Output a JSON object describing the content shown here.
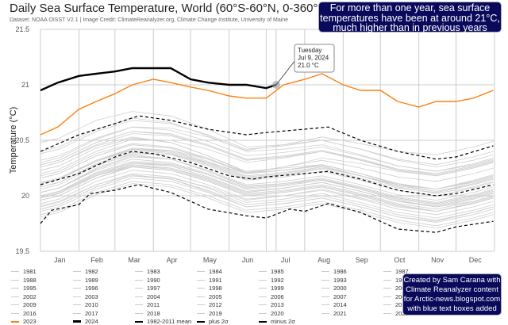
{
  "header": {
    "title": "Daily Sea Surface Temperature, World (60°S-60°N, 0-360°E)",
    "credit": "Dataset: NOAA OISST V2.1 | Image Credit: ClimateReanalyzer.org, Climate Change Institute, University of Maine"
  },
  "annotations": {
    "top_box": [
      "For more than one year, sea surface",
      "temperatures have been at around 21°C,",
      "much higher than in previous years"
    ],
    "bottom_box": [
      "Created by Sam Carana with",
      "Climate Reanalyzer content",
      "for Arctic-news.blogspot.com",
      "with blue text boxes added"
    ],
    "box_color": "#0a0a5c"
  },
  "chart_data": {
    "type": "line",
    "title": "Daily Sea Surface Temperature, World (60°S-60°N, 0-360°E)",
    "ylabel": "Temperature (°C)",
    "xlabel": "",
    "ylim": [
      19.5,
      21.5
    ],
    "yticks": [
      "19.5",
      "20",
      "20.5",
      "21",
      "21.5"
    ],
    "xticks": [
      "Jan",
      "Feb",
      "Mar",
      "Apr",
      "May",
      "Jun",
      "Jul",
      "Aug",
      "Sep",
      "Oct",
      "Nov",
      "Dec"
    ],
    "grid": true,
    "legend_placement": "bottom",
    "colors": {
      "gray": "#cfcfcf",
      "y2023": "#ff7f0e",
      "y2024": "#000000",
      "stats": "#000000"
    },
    "tooltip": {
      "lines": [
        "Tuesday",
        "Jul 9, 2024",
        "21.0 °C"
      ],
      "date": "07-09",
      "value": 21.0
    },
    "gray_years_monthly": [
      {
        "name": "1981",
        "values": [
          19.94,
          20.1,
          20.2,
          20.17,
          20.07,
          19.94,
          19.97,
          20.02,
          19.94,
          19.85,
          19.8,
          19.87
        ]
      },
      {
        "name": "1982",
        "values": [
          19.9,
          20.06,
          20.16,
          20.13,
          20.03,
          19.9,
          19.93,
          19.98,
          19.9,
          19.81,
          19.76,
          19.83
        ]
      },
      {
        "name": "1983",
        "values": [
          20.0,
          20.16,
          20.26,
          20.23,
          20.13,
          20.0,
          20.03,
          20.08,
          20.0,
          19.91,
          19.86,
          19.93
        ]
      },
      {
        "name": "1984",
        "values": [
          19.87,
          20.03,
          20.13,
          20.1,
          20.0,
          19.87,
          19.9,
          19.95,
          19.87,
          19.78,
          19.73,
          19.8
        ]
      },
      {
        "name": "1985",
        "values": [
          19.85,
          20.01,
          20.11,
          20.08,
          19.98,
          19.85,
          19.88,
          19.93,
          19.85,
          19.76,
          19.71,
          19.78
        ]
      },
      {
        "name": "1986",
        "values": [
          19.92,
          20.08,
          20.18,
          20.16,
          20.08,
          19.96,
          20.0,
          20.06,
          19.98,
          19.9,
          19.86,
          19.94
        ]
      },
      {
        "name": "1987",
        "values": [
          20.07,
          20.25,
          20.36,
          20.33,
          20.22,
          20.08,
          20.11,
          20.15,
          20.06,
          19.96,
          19.9,
          19.95
        ]
      },
      {
        "name": "1988",
        "values": [
          20.04,
          20.18,
          20.27,
          20.24,
          20.14,
          20.01,
          20.04,
          20.09,
          20.01,
          19.92,
          19.86,
          19.93
        ]
      },
      {
        "name": "1989",
        "values": [
          19.92,
          20.08,
          20.18,
          20.15,
          20.05,
          19.92,
          19.95,
          20.0,
          19.92,
          19.83,
          19.78,
          19.85
        ]
      },
      {
        "name": "1990",
        "values": [
          20.04,
          20.2,
          20.3,
          20.27,
          20.17,
          20.04,
          20.07,
          20.12,
          20.04,
          19.95,
          19.9,
          19.97
        ]
      },
      {
        "name": "1991",
        "values": [
          20.02,
          20.18,
          20.28,
          20.25,
          20.15,
          20.02,
          20.05,
          20.1,
          20.02,
          19.93,
          19.88,
          19.95
        ]
      },
      {
        "name": "1992",
        "values": [
          19.95,
          20.1,
          20.19,
          20.15,
          20.04,
          19.9,
          19.93,
          19.98,
          19.9,
          19.81,
          19.77,
          19.85
        ]
      },
      {
        "name": "1993",
        "values": [
          19.97,
          20.13,
          20.23,
          20.2,
          20.1,
          19.97,
          20.0,
          20.05,
          19.97,
          19.88,
          19.83,
          19.9
        ]
      },
      {
        "name": "1994",
        "values": [
          20.0,
          20.16,
          20.27,
          20.25,
          20.16,
          20.03,
          20.07,
          20.12,
          20.04,
          19.95,
          19.91,
          19.98
        ]
      },
      {
        "name": "1995",
        "values": [
          20.07,
          20.23,
          20.33,
          20.3,
          20.2,
          20.07,
          20.1,
          20.15,
          20.07,
          19.98,
          19.93,
          20.0
        ]
      },
      {
        "name": "1996",
        "values": [
          20.0,
          20.16,
          20.26,
          20.23,
          20.13,
          20.0,
          20.03,
          20.08,
          20.0,
          19.91,
          19.86,
          19.93
        ]
      },
      {
        "name": "1997",
        "values": [
          20.1,
          20.27,
          20.38,
          20.37,
          20.3,
          20.2,
          20.26,
          20.34,
          20.29,
          20.22,
          20.18,
          20.25
        ]
      },
      {
        "name": "1998",
        "values": [
          20.3,
          20.45,
          20.53,
          20.48,
          20.36,
          20.22,
          20.25,
          20.28,
          20.2,
          20.1,
          20.04,
          20.1
        ]
      },
      {
        "name": "1999",
        "values": [
          20.02,
          20.18,
          20.29,
          20.27,
          20.17,
          20.04,
          20.07,
          20.12,
          20.04,
          19.95,
          19.9,
          19.97
        ]
      },
      {
        "name": "2000",
        "values": [
          20.04,
          20.21,
          20.31,
          20.29,
          20.19,
          20.06,
          20.09,
          20.14,
          20.06,
          19.97,
          19.92,
          19.99
        ]
      },
      {
        "name": "2001",
        "values": [
          20.12,
          20.29,
          20.39,
          20.37,
          20.27,
          20.14,
          20.17,
          20.22,
          20.14,
          20.05,
          20.0,
          20.07
        ]
      },
      {
        "name": "2002",
        "values": [
          20.15,
          20.32,
          20.42,
          20.4,
          20.3,
          20.17,
          20.2,
          20.26,
          20.18,
          20.1,
          20.06,
          20.14
        ]
      },
      {
        "name": "2003",
        "values": [
          20.22,
          20.38,
          20.47,
          20.44,
          20.34,
          20.2,
          20.23,
          20.28,
          20.2,
          20.11,
          20.06,
          20.12
        ]
      },
      {
        "name": "2004",
        "values": [
          20.16,
          20.32,
          20.42,
          20.39,
          20.29,
          20.16,
          20.19,
          20.24,
          20.16,
          20.07,
          20.03,
          20.1
        ]
      },
      {
        "name": "2005",
        "values": [
          20.2,
          20.36,
          20.46,
          20.43,
          20.33,
          20.2,
          20.23,
          20.28,
          20.2,
          20.11,
          20.06,
          20.13
        ]
      },
      {
        "name": "2006",
        "values": [
          20.15,
          20.31,
          20.41,
          20.38,
          20.28,
          20.15,
          20.19,
          20.25,
          20.18,
          20.1,
          20.06,
          20.13
        ]
      },
      {
        "name": "2007",
        "values": [
          20.12,
          20.28,
          20.37,
          20.33,
          20.22,
          20.09,
          20.11,
          20.16,
          20.08,
          19.99,
          19.94,
          20.01
        ]
      },
      {
        "name": "2008",
        "values": [
          20.03,
          20.19,
          20.3,
          20.28,
          20.19,
          20.06,
          20.09,
          20.14,
          20.07,
          19.98,
          19.93,
          20.0
        ]
      },
      {
        "name": "2009",
        "values": [
          20.15,
          20.31,
          20.42,
          20.41,
          20.33,
          20.21,
          20.26,
          20.32,
          20.25,
          20.17,
          20.13,
          20.2
        ]
      },
      {
        "name": "2010",
        "values": [
          20.27,
          20.43,
          20.52,
          20.48,
          20.36,
          20.21,
          20.23,
          20.27,
          20.18,
          20.08,
          20.02,
          20.08
        ]
      },
      {
        "name": "2011",
        "values": [
          20.07,
          20.24,
          20.35,
          20.33,
          20.23,
          20.1,
          20.13,
          20.18,
          20.1,
          20.01,
          19.96,
          20.03
        ]
      },
      {
        "name": "2012",
        "values": [
          20.15,
          20.32,
          20.43,
          20.41,
          20.31,
          20.18,
          20.21,
          20.26,
          20.18,
          20.09,
          20.04,
          20.11
        ]
      },
      {
        "name": "2013",
        "values": [
          20.2,
          20.36,
          20.46,
          20.43,
          20.33,
          20.2,
          20.23,
          20.28,
          20.2,
          20.11,
          20.06,
          20.13
        ]
      },
      {
        "name": "2014",
        "values": [
          20.24,
          20.4,
          20.51,
          20.5,
          20.42,
          20.3,
          20.34,
          20.4,
          20.32,
          20.24,
          20.19,
          20.26
        ]
      },
      {
        "name": "2015",
        "values": [
          20.34,
          20.51,
          20.62,
          20.61,
          20.53,
          20.41,
          20.46,
          20.53,
          20.47,
          20.4,
          20.37,
          20.44
        ]
      },
      {
        "name": "2016",
        "values": [
          20.52,
          20.68,
          20.76,
          20.72,
          20.6,
          20.44,
          20.46,
          20.5,
          20.42,
          20.32,
          20.26,
          20.32
        ]
      },
      {
        "name": "2017",
        "values": [
          20.36,
          20.52,
          20.62,
          20.59,
          20.49,
          20.36,
          20.39,
          20.44,
          20.36,
          20.27,
          20.22,
          20.29
        ]
      },
      {
        "name": "2018",
        "values": [
          20.32,
          20.48,
          20.58,
          20.55,
          20.45,
          20.32,
          20.35,
          20.4,
          20.33,
          20.24,
          20.2,
          20.27
        ]
      },
      {
        "name": "2019",
        "values": [
          20.42,
          20.58,
          20.68,
          20.65,
          20.55,
          20.42,
          20.45,
          20.5,
          20.42,
          20.33,
          20.28,
          20.35
        ]
      },
      {
        "name": "2020",
        "values": [
          20.44,
          20.6,
          20.7,
          20.66,
          20.54,
          20.4,
          20.42,
          20.46,
          20.37,
          20.27,
          20.22,
          20.28
        ]
      },
      {
        "name": "2021",
        "values": [
          20.3,
          20.46,
          20.56,
          20.54,
          20.45,
          20.32,
          20.35,
          20.4,
          20.32,
          20.23,
          20.18,
          20.25
        ]
      },
      {
        "name": "2022",
        "values": [
          20.32,
          20.48,
          20.58,
          20.56,
          20.46,
          20.33,
          20.36,
          20.41,
          20.33,
          20.24,
          20.19,
          20.26
        ]
      }
    ],
    "series": [
      {
        "name": "2023",
        "style": "solid-orange",
        "points": [
          [
            "01-01",
            20.55
          ],
          [
            "01-15",
            20.62
          ],
          [
            "02-01",
            20.78
          ],
          [
            "02-15",
            20.85
          ],
          [
            "03-01",
            20.92
          ],
          [
            "03-15",
            21.0
          ],
          [
            "04-01",
            21.05
          ],
          [
            "04-15",
            21.02
          ],
          [
            "05-01",
            20.98
          ],
          [
            "05-15",
            20.95
          ],
          [
            "06-01",
            20.9
          ],
          [
            "06-15",
            20.88
          ],
          [
            "07-01",
            20.88
          ],
          [
            "07-15",
            21.0
          ],
          [
            "08-01",
            21.05
          ],
          [
            "08-15",
            21.1
          ],
          [
            "09-01",
            21.0
          ],
          [
            "09-15",
            20.95
          ],
          [
            "10-01",
            20.95
          ],
          [
            "10-15",
            20.85
          ],
          [
            "11-01",
            20.8
          ],
          [
            "11-15",
            20.85
          ],
          [
            "12-01",
            20.85
          ],
          [
            "12-15",
            20.88
          ],
          [
            "12-31",
            20.95
          ]
        ]
      },
      {
        "name": "2024",
        "style": "thick-black",
        "points": [
          [
            "01-01",
            20.95
          ],
          [
            "01-15",
            21.02
          ],
          [
            "02-01",
            21.08
          ],
          [
            "02-15",
            21.1
          ],
          [
            "03-01",
            21.12
          ],
          [
            "03-15",
            21.15
          ],
          [
            "04-01",
            21.15
          ],
          [
            "04-15",
            21.15
          ],
          [
            "05-01",
            21.05
          ],
          [
            "05-15",
            21.02
          ],
          [
            "06-01",
            21.0
          ],
          [
            "06-15",
            21.0
          ],
          [
            "07-01",
            20.97
          ],
          [
            "07-09",
            21.0
          ]
        ]
      },
      {
        "name": "1982-2011 mean",
        "style": "dashed",
        "points": [
          [
            "01-01",
            20.1
          ],
          [
            "02-01",
            20.2
          ],
          [
            "03-01",
            20.35
          ],
          [
            "03-15",
            20.4
          ],
          [
            "04-01",
            20.38
          ],
          [
            "05-01",
            20.3
          ],
          [
            "06-01",
            20.18
          ],
          [
            "06-20",
            20.15
          ],
          [
            "07-01",
            20.17
          ],
          [
            "08-01",
            20.2
          ],
          [
            "08-20",
            20.22
          ],
          [
            "09-15",
            20.15
          ],
          [
            "10-15",
            20.05
          ],
          [
            "11-15",
            20.0
          ],
          [
            "12-01",
            20.02
          ],
          [
            "12-31",
            20.1
          ]
        ]
      },
      {
        "name": "plus 2σ",
        "style": "dashed",
        "points": [
          [
            "01-01",
            20.4
          ],
          [
            "02-01",
            20.55
          ],
          [
            "03-01",
            20.65
          ],
          [
            "03-20",
            20.72
          ],
          [
            "04-15",
            20.68
          ],
          [
            "05-15",
            20.6
          ],
          [
            "06-15",
            20.55
          ],
          [
            "07-01",
            20.57
          ],
          [
            "08-01",
            20.6
          ],
          [
            "08-20",
            20.62
          ],
          [
            "09-15",
            20.5
          ],
          [
            "10-15",
            20.4
          ],
          [
            "11-15",
            20.33
          ],
          [
            "12-01",
            20.35
          ],
          [
            "12-31",
            20.45
          ]
        ]
      },
      {
        "name": "minus 2σ",
        "style": "dashed",
        "points": [
          [
            "01-01",
            19.75
          ],
          [
            "01-10",
            19.87
          ],
          [
            "02-01",
            19.92
          ],
          [
            "02-10",
            20.02
          ],
          [
            "03-01",
            20.05
          ],
          [
            "03-20",
            20.1
          ],
          [
            "04-15",
            20.03
          ],
          [
            "05-15",
            19.88
          ],
          [
            "06-15",
            19.82
          ],
          [
            "07-01",
            19.8
          ],
          [
            "07-20",
            19.88
          ],
          [
            "08-01",
            19.86
          ],
          [
            "08-20",
            19.93
          ],
          [
            "09-15",
            19.85
          ],
          [
            "10-15",
            19.7
          ],
          [
            "11-15",
            19.67
          ],
          [
            "12-01",
            19.72
          ],
          [
            "12-31",
            19.77
          ]
        ]
      }
    ]
  }
}
